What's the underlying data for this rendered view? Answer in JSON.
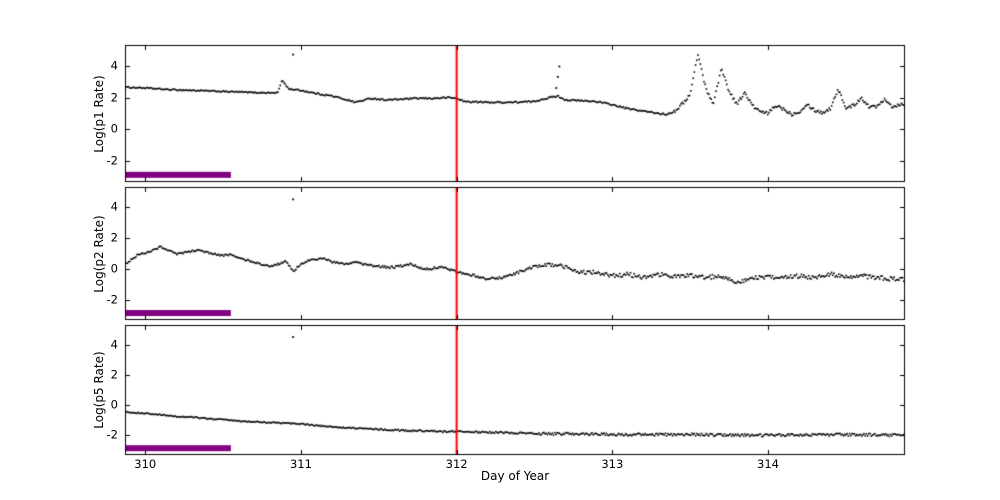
{
  "figure": {
    "xlabel": "Day of Year",
    "background_color": "#ffffff",
    "axis_color": "#000000",
    "marker_color": "#000000",
    "xlim": [
      309.87,
      314.88
    ],
    "xticks": [
      310,
      311,
      312,
      313,
      314
    ],
    "vline": {
      "x": 312,
      "color": "#ff0000"
    },
    "interval_bar": {
      "x_start": 309.87,
      "x_end": 310.55,
      "y": -2.85,
      "color": "#800080"
    }
  },
  "chart_data": [
    {
      "type": "scatter",
      "panel": "p1",
      "ylabel": "Log(p1 Rate)",
      "ylim": [
        -3.3,
        5.3
      ],
      "yticks": [
        -2,
        0,
        2,
        4
      ],
      "noise_segments": [
        [
          309.87,
          311.0,
          0.04
        ],
        [
          311.0,
          313.4,
          0.05
        ],
        [
          313.4,
          314.9,
          0.1
        ]
      ],
      "anchors": [
        [
          309.87,
          2.65
        ],
        [
          310.0,
          2.6
        ],
        [
          310.15,
          2.5
        ],
        [
          310.3,
          2.45
        ],
        [
          310.45,
          2.4
        ],
        [
          310.6,
          2.35
        ],
        [
          310.75,
          2.3
        ],
        [
          310.85,
          2.3
        ],
        [
          310.88,
          3.1
        ],
        [
          310.92,
          2.55
        ],
        [
          311.0,
          2.45
        ],
        [
          311.1,
          2.25
        ],
        [
          311.2,
          2.1
        ],
        [
          311.3,
          1.85
        ],
        [
          311.35,
          1.7
        ],
        [
          311.45,
          1.95
        ],
        [
          311.55,
          1.85
        ],
        [
          311.65,
          1.9
        ],
        [
          311.75,
          1.95
        ],
        [
          311.85,
          1.95
        ],
        [
          311.95,
          2.0
        ],
        [
          312.0,
          1.95
        ],
        [
          312.05,
          1.75
        ],
        [
          312.2,
          1.7
        ],
        [
          312.35,
          1.7
        ],
        [
          312.5,
          1.75
        ],
        [
          312.55,
          1.9
        ],
        [
          312.65,
          2.1
        ],
        [
          312.7,
          1.85
        ],
        [
          312.8,
          1.8
        ],
        [
          312.9,
          1.75
        ],
        [
          313.0,
          1.55
        ],
        [
          313.1,
          1.3
        ],
        [
          313.2,
          1.15
        ],
        [
          313.3,
          1.0
        ],
        [
          313.35,
          0.95
        ],
        [
          313.4,
          1.15
        ],
        [
          313.45,
          1.6
        ],
        [
          313.5,
          2.2
        ],
        [
          313.55,
          4.75
        ],
        [
          313.6,
          2.6
        ],
        [
          313.65,
          1.6
        ],
        [
          313.7,
          3.85
        ],
        [
          313.75,
          2.4
        ],
        [
          313.8,
          1.6
        ],
        [
          313.85,
          2.3
        ],
        [
          313.9,
          1.5
        ],
        [
          313.95,
          1.1
        ],
        [
          314.0,
          1.0
        ],
        [
          314.05,
          1.5
        ],
        [
          314.1,
          1.3
        ],
        [
          314.15,
          0.95
        ],
        [
          314.2,
          1.1
        ],
        [
          314.25,
          1.6
        ],
        [
          314.3,
          1.2
        ],
        [
          314.35,
          1.05
        ],
        [
          314.4,
          1.3
        ],
        [
          314.45,
          2.55
        ],
        [
          314.5,
          1.35
        ],
        [
          314.55,
          1.5
        ],
        [
          314.6,
          2.0
        ],
        [
          314.65,
          1.4
        ],
        [
          314.7,
          1.45
        ],
        [
          314.75,
          1.95
        ],
        [
          314.8,
          1.4
        ],
        [
          314.85,
          1.6
        ],
        [
          314.88,
          1.55
        ]
      ],
      "outliers": [
        [
          310.95,
          4.7
        ],
        [
          312.64,
          2.6
        ],
        [
          312.65,
          3.3
        ],
        [
          312.66,
          3.95
        ]
      ]
    },
    {
      "type": "scatter",
      "panel": "p2",
      "ylabel": "Log(p2 Rate)",
      "ylim": [
        -3.3,
        5.3
      ],
      "yticks": [
        -2,
        0,
        2,
        4
      ],
      "noise_segments": [
        [
          309.87,
          311.5,
          0.06
        ],
        [
          311.5,
          312.6,
          0.08
        ],
        [
          312.6,
          314.9,
          0.14
        ]
      ],
      "anchors": [
        [
          309.87,
          0.3
        ],
        [
          309.95,
          0.9
        ],
        [
          310.05,
          1.2
        ],
        [
          310.1,
          1.45
        ],
        [
          310.15,
          1.2
        ],
        [
          310.2,
          0.95
        ],
        [
          310.3,
          1.15
        ],
        [
          310.35,
          1.25
        ],
        [
          310.4,
          1.05
        ],
        [
          310.5,
          0.85
        ],
        [
          310.55,
          0.95
        ],
        [
          310.6,
          0.7
        ],
        [
          310.7,
          0.45
        ],
        [
          310.8,
          0.15
        ],
        [
          310.85,
          0.3
        ],
        [
          310.9,
          0.5
        ],
        [
          310.95,
          -0.15
        ],
        [
          311.0,
          0.3
        ],
        [
          311.05,
          0.55
        ],
        [
          311.15,
          0.7
        ],
        [
          311.2,
          0.45
        ],
        [
          311.3,
          0.3
        ],
        [
          311.35,
          0.5
        ],
        [
          311.4,
          0.3
        ],
        [
          311.5,
          0.15
        ],
        [
          311.6,
          0.1
        ],
        [
          311.7,
          0.3
        ],
        [
          311.8,
          0.0
        ],
        [
          311.9,
          0.1
        ],
        [
          312.0,
          -0.15
        ],
        [
          312.1,
          -0.4
        ],
        [
          312.2,
          -0.65
        ],
        [
          312.3,
          -0.55
        ],
        [
          312.4,
          -0.2
        ],
        [
          312.5,
          0.15
        ],
        [
          312.6,
          0.3
        ],
        [
          312.7,
          0.1
        ],
        [
          312.8,
          -0.25
        ],
        [
          312.9,
          -0.2
        ],
        [
          313.0,
          -0.45
        ],
        [
          313.1,
          -0.35
        ],
        [
          313.2,
          -0.55
        ],
        [
          313.3,
          -0.35
        ],
        [
          313.4,
          -0.5
        ],
        [
          313.5,
          -0.4
        ],
        [
          313.6,
          -0.55
        ],
        [
          313.7,
          -0.45
        ],
        [
          313.8,
          -0.85
        ],
        [
          313.9,
          -0.6
        ],
        [
          314.0,
          -0.55
        ],
        [
          314.1,
          -0.6
        ],
        [
          314.2,
          -0.45
        ],
        [
          314.3,
          -0.55
        ],
        [
          314.4,
          -0.35
        ],
        [
          314.5,
          -0.5
        ],
        [
          314.6,
          -0.45
        ],
        [
          314.7,
          -0.55
        ],
        [
          314.8,
          -0.65
        ],
        [
          314.88,
          -0.7
        ]
      ],
      "outliers": [
        [
          310.95,
          4.5
        ]
      ]
    },
    {
      "type": "scatter",
      "panel": "p5",
      "ylabel": "Log(p5 Rate)",
      "ylim": [
        -3.3,
        5.3
      ],
      "yticks": [
        -2,
        0,
        2,
        4
      ],
      "noise_segments": [
        [
          309.87,
          311.5,
          0.04
        ],
        [
          311.5,
          312.5,
          0.06
        ],
        [
          312.5,
          314.9,
          0.09
        ]
      ],
      "anchors": [
        [
          309.87,
          -0.45
        ],
        [
          310.0,
          -0.55
        ],
        [
          310.1,
          -0.65
        ],
        [
          310.2,
          -0.75
        ],
        [
          310.3,
          -0.8
        ],
        [
          310.4,
          -0.9
        ],
        [
          310.5,
          -0.95
        ],
        [
          310.6,
          -1.05
        ],
        [
          310.7,
          -1.1
        ],
        [
          310.8,
          -1.15
        ],
        [
          310.9,
          -1.2
        ],
        [
          311.0,
          -1.25
        ],
        [
          311.1,
          -1.35
        ],
        [
          311.2,
          -1.45
        ],
        [
          311.3,
          -1.5
        ],
        [
          311.4,
          -1.55
        ],
        [
          311.5,
          -1.6
        ],
        [
          311.6,
          -1.65
        ],
        [
          311.7,
          -1.7
        ],
        [
          311.8,
          -1.7
        ],
        [
          311.9,
          -1.75
        ],
        [
          312.0,
          -1.75
        ],
        [
          312.2,
          -1.8
        ],
        [
          312.4,
          -1.85
        ],
        [
          312.6,
          -1.9
        ],
        [
          312.8,
          -1.9
        ],
        [
          313.0,
          -1.95
        ],
        [
          313.5,
          -1.95
        ],
        [
          314.0,
          -2.0
        ],
        [
          314.5,
          -1.95
        ],
        [
          314.88,
          -2.0
        ]
      ],
      "outliers": [
        [
          310.95,
          4.5
        ]
      ]
    }
  ]
}
